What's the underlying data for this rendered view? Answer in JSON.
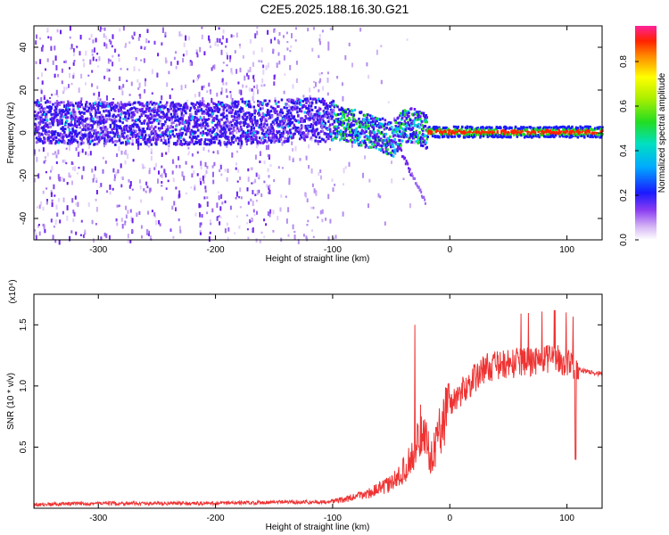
{
  "title": "C2E5.2025.188.16.30.G21",
  "chart_data": [
    {
      "type": "heatmap",
      "xlabel": "Height of straight line (km)",
      "ylabel": "Frequency (Hz)",
      "xlim": [
        -355,
        130
      ],
      "ylim": [
        -50,
        50
      ],
      "x_ticks": [
        -300,
        -200,
        -100,
        0,
        100
      ],
      "y_ticks": [
        -40,
        -20,
        0,
        20,
        40
      ],
      "colorbar": {
        "label": "Normalized spectral amplitude",
        "range": [
          0,
          0.96
        ],
        "ticks": [
          0.0,
          0.2,
          0.4,
          0.6,
          0.8
        ]
      },
      "ridge": [
        {
          "x": -355,
          "y": 6
        },
        {
          "x": -300,
          "y": 5
        },
        {
          "x": -250,
          "y": 5
        },
        {
          "x": -200,
          "y": 5
        },
        {
          "x": -150,
          "y": 6
        },
        {
          "x": -120,
          "y": 7
        },
        {
          "x": -100,
          "y": 6
        },
        {
          "x": -80,
          "y": 3
        },
        {
          "x": -60,
          "y": 0
        },
        {
          "x": -50,
          "y": -3
        },
        {
          "x": -40,
          "y": 4
        },
        {
          "x": -30,
          "y": 4
        },
        {
          "x": -20,
          "y": 1
        },
        {
          "x": 0,
          "y": 1
        },
        {
          "x": 50,
          "y": 1
        },
        {
          "x": 100,
          "y": 1
        },
        {
          "x": 130,
          "y": 1
        }
      ]
    },
    {
      "type": "line",
      "xlabel": "Height of straight line (km)",
      "ylabel": "SNR (10 * v/v)",
      "y_multiplier": "(x10⁴)",
      "xlim": [
        -355,
        130
      ],
      "ylim": [
        0,
        1.75
      ],
      "x_ticks": [
        -300,
        -200,
        -100,
        0,
        100
      ],
      "y_ticks": [
        0.5,
        1.0,
        1.5
      ],
      "series": [
        {
          "color": "#ee3333",
          "x": [
            -355,
            -300,
            -250,
            -200,
            -150,
            -110,
            -90,
            -70,
            -50,
            -40,
            -30,
            -25,
            -20,
            -15,
            -10,
            -5,
            0,
            10,
            20,
            30,
            50,
            70,
            90,
            100,
            108,
            115,
            130
          ],
          "y": [
            0.03,
            0.04,
            0.04,
            0.04,
            0.05,
            0.05,
            0.07,
            0.12,
            0.2,
            0.3,
            0.45,
            0.65,
            0.55,
            0.4,
            0.6,
            0.75,
            0.85,
            0.95,
            1.05,
            1.15,
            1.18,
            1.2,
            1.22,
            1.2,
            1.15,
            1.12,
            1.1
          ]
        }
      ]
    }
  ]
}
